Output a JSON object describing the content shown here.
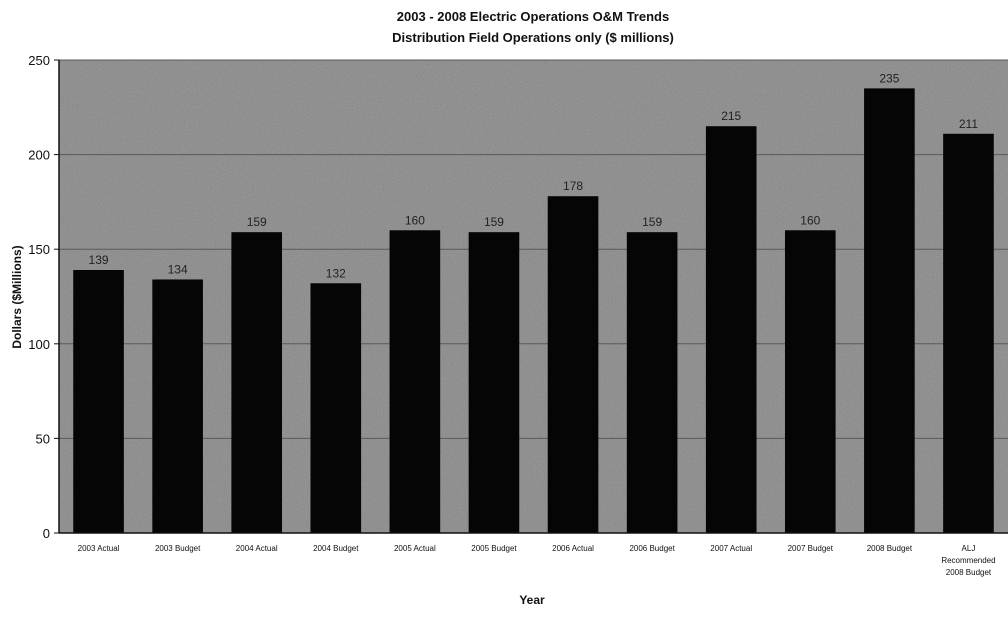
{
  "chart_data": {
    "type": "bar",
    "title": "2003 - 2008 Electric Operations O&M Trends",
    "subtitle": "Distribution Field Operations only ($ millions)",
    "xlabel": "Year",
    "ylabel": "Dollars ($Millions)",
    "ylim": [
      0,
      250
    ],
    "yticks": [
      0,
      50,
      100,
      150,
      200,
      250
    ],
    "ytick_labels": [
      "0",
      "50",
      "100",
      "150",
      "200",
      "250"
    ],
    "grid": true,
    "categories": [
      "2003 Actual",
      "2003 Budget",
      "2004 Actual",
      "2004 Budget",
      "2005 Actual",
      "2005 Budget",
      "2006 Actual",
      "2006 Budget",
      "2007 Actual",
      "2007 Budget",
      "2008 Budget",
      "ALJ Recommended 2008 Budget"
    ],
    "values": [
      139,
      134,
      159,
      132,
      160,
      159,
      178,
      159,
      215,
      160,
      235,
      211
    ],
    "data_labels": [
      "139",
      "134",
      "159",
      "132",
      "160",
      "159",
      "178",
      "159",
      "215",
      "160",
      "235",
      "211"
    ],
    "colors": {
      "plot_background": "#9a9a9a",
      "bar": "#050505",
      "grid": "#5a5a5a"
    }
  }
}
